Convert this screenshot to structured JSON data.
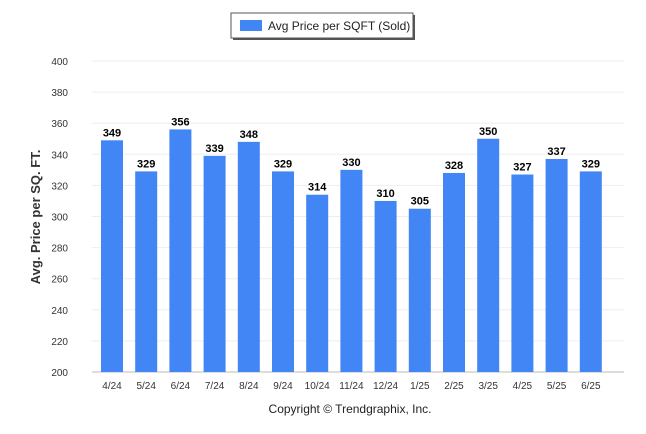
{
  "chart_data": {
    "type": "bar",
    "categories": [
      "4/24",
      "5/24",
      "6/24",
      "7/24",
      "8/24",
      "9/24",
      "10/24",
      "11/24",
      "12/24",
      "1/25",
      "2/25",
      "3/25",
      "4/25",
      "5/25",
      "6/25"
    ],
    "series": [
      {
        "name": "Avg Price per SQFT (Sold)",
        "values": [
          349,
          329,
          356,
          339,
          348,
          329,
          314,
          330,
          310,
          305,
          328,
          350,
          327,
          337,
          329
        ]
      }
    ],
    "ylabel": "Avg. Price per SQ. FT.",
    "xlabel": "",
    "ylim": [
      200,
      400
    ],
    "yticks": [
      200,
      220,
      240,
      260,
      280,
      300,
      320,
      340,
      360,
      380,
      400
    ],
    "grid": true,
    "legend_position": "top-center",
    "bar_color": "#4285f4",
    "data_labels": true
  },
  "footer": {
    "copyright": "Copyright © Trendgraphix, Inc."
  }
}
